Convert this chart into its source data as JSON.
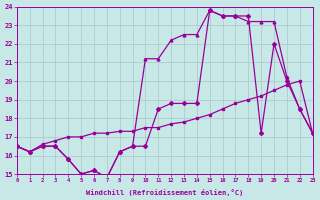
{
  "bg_color": "#c8e8e8",
  "grid_color": "#a8c8c8",
  "line_color": "#990099",
  "xlim": [
    0,
    23
  ],
  "ylim": [
    15,
    24
  ],
  "xticks": [
    0,
    1,
    2,
    3,
    4,
    5,
    6,
    7,
    8,
    9,
    10,
    11,
    12,
    13,
    14,
    15,
    16,
    17,
    18,
    19,
    20,
    21,
    22,
    23
  ],
  "yticks": [
    15,
    16,
    17,
    18,
    19,
    20,
    21,
    22,
    23,
    24
  ],
  "xlabel": "Windchill (Refroidissement éolien,°C)",
  "line1_x": [
    0,
    1,
    2,
    3,
    4,
    5,
    6,
    7,
    8,
    9,
    10,
    11,
    12,
    13,
    14,
    15,
    16,
    17,
    18,
    19,
    20,
    21,
    22,
    23
  ],
  "line1_y": [
    16.5,
    16.2,
    16.5,
    16.5,
    15.8,
    15.0,
    15.2,
    14.8,
    16.2,
    16.5,
    16.5,
    18.5,
    18.8,
    18.8,
    18.8,
    23.8,
    23.5,
    23.5,
    23.5,
    17.2,
    22.0,
    20.0,
    18.5,
    17.2
  ],
  "line2_x": [
    0,
    1,
    2,
    3,
    4,
    5,
    6,
    7,
    8,
    9,
    10,
    11,
    12,
    13,
    14,
    15,
    16,
    17,
    18,
    19,
    20,
    21,
    22,
    23
  ],
  "line2_y": [
    16.5,
    16.2,
    16.5,
    16.5,
    15.8,
    15.0,
    15.2,
    14.8,
    16.2,
    16.5,
    21.2,
    21.2,
    22.2,
    22.5,
    22.5,
    23.8,
    23.5,
    23.5,
    23.2,
    23.2,
    23.2,
    20.2,
    18.5,
    17.2
  ],
  "line3_x": [
    0,
    1,
    2,
    3,
    4,
    5,
    6,
    7,
    8,
    9,
    10,
    11,
    12,
    13,
    14,
    15,
    16,
    17,
    18,
    19,
    20,
    21,
    22,
    23
  ],
  "line3_y": [
    16.5,
    16.2,
    16.6,
    16.8,
    17.0,
    17.0,
    17.2,
    17.2,
    17.3,
    17.3,
    17.5,
    17.5,
    17.7,
    17.8,
    18.0,
    18.2,
    18.5,
    18.8,
    19.0,
    19.2,
    19.5,
    19.8,
    20.0,
    17.2
  ]
}
